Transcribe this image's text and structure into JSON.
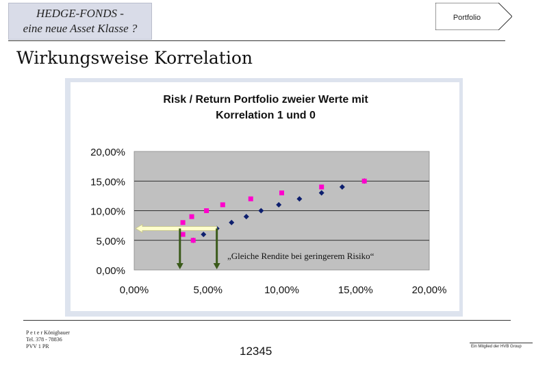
{
  "header": {
    "title_line1": "HEDGE-FONDS -",
    "title_line2": "eine neue Asset Klasse ?",
    "tab_label": "Portfolio"
  },
  "slide_title": "Wirkungsweise Korrelation",
  "chart_data": {
    "type": "scatter",
    "title_line1": "Risk / Return Portfolio zweier Werte mit",
    "title_line2": "Korrelation 1 und 0",
    "xlim": [
      0,
      20
    ],
    "ylim": [
      0,
      20
    ],
    "x_ticks": [
      "0,00%",
      "5,00%",
      "10,00%",
      "15,00%",
      "20,00%"
    ],
    "y_ticks": [
      "0,00%",
      "5,00%",
      "10,00%",
      "15,00%",
      "20,00%"
    ],
    "grid": "horizontal",
    "legend": "none",
    "series": [
      {
        "marker": "diamond",
        "color": "#0d1f6e",
        "points": [
          [
            4.0,
            5.0
          ],
          [
            4.7,
            6.0
          ],
          [
            5.6,
            7.0
          ],
          [
            6.6,
            8.0
          ],
          [
            7.6,
            9.0
          ],
          [
            8.6,
            10.0
          ],
          [
            9.8,
            11.0
          ],
          [
            11.2,
            12.0
          ],
          [
            12.7,
            13.0
          ],
          [
            14.1,
            14.0
          ],
          [
            15.6,
            15.0
          ]
        ]
      },
      {
        "marker": "square",
        "color": "#ff00cc",
        "points": [
          [
            4.0,
            5.0
          ],
          [
            3.3,
            6.0
          ],
          [
            3.1,
            7.0
          ],
          [
            3.3,
            8.0
          ],
          [
            3.9,
            9.0
          ],
          [
            4.9,
            10.0
          ],
          [
            6.0,
            11.0
          ],
          [
            7.9,
            12.0
          ],
          [
            10.0,
            13.0
          ],
          [
            12.7,
            14.0
          ],
          [
            15.6,
            15.0
          ]
        ]
      }
    ],
    "annotation": "„Gleiche Rendite bei geringerem Risiko“",
    "arrow_y": 7.0,
    "marker_x1": 3.1,
    "marker_x2": 5.6,
    "colors": {
      "plot_bg": "#c0c0c0",
      "frame_bg": "#ffffff",
      "page_strip": "#dde3ee",
      "arrow_fill": "#ffffcc",
      "arrow_stroke": "#c8c890",
      "green_arrow": "#3a5a1a"
    }
  },
  "footer": {
    "name": "P e t e r   Königbauer",
    "phone": "Tel. 378 - 78836",
    "dept": "PVV 1 PR",
    "page_number": "12345",
    "group_note": "Ein Mitglied der HVB Group"
  }
}
